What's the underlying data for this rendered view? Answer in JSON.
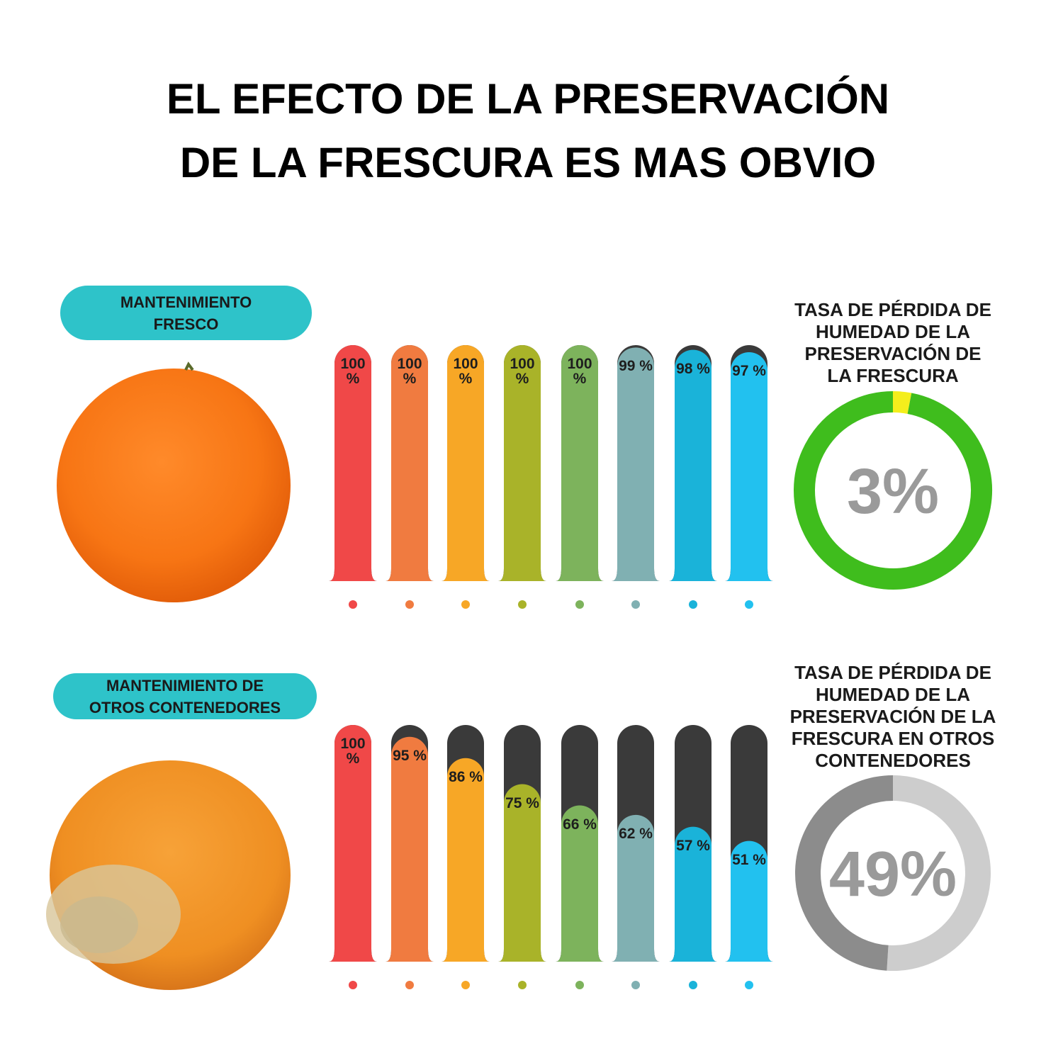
{
  "title": [
    "EL EFECTO DE LA PRESERVACIÓN",
    "DE LA FRESCURA ES MAS OBVIO"
  ],
  "chart_data": [
    {
      "type": "bar",
      "label": [
        "MANTENIMIENTO",
        "FRESCO"
      ],
      "values": [
        100,
        100,
        100,
        100,
        100,
        99,
        98,
        97
      ],
      "value_labels": [
        "100 %",
        "100 %",
        "100 %",
        "100 %",
        "100 %",
        "99 %",
        "98 %",
        "97 %"
      ],
      "colors": [
        "#f04848",
        "#f07b40",
        "#f7a726",
        "#a9b329",
        "#7db35c",
        "#80b0b2",
        "#1ab3d9",
        "#22c1ef"
      ],
      "track_color": "#3a3a3a",
      "ylim": [
        0,
        100
      ]
    },
    {
      "type": "donut",
      "title": [
        "TASA DE PÉRDIDA DE",
        "HUMEDAD DE LA",
        "PRESERVACIÓN DE",
        "LA FRESCURA"
      ],
      "values": [
        3,
        97
      ],
      "colors": [
        "#f4ee1c",
        "#3fbd1d"
      ],
      "center_label": "3%"
    },
    {
      "type": "bar",
      "label": [
        "MANTENIMIENTO DE",
        "OTROS CONTENEDORES"
      ],
      "values": [
        100,
        95,
        86,
        75,
        66,
        62,
        57,
        51
      ],
      "value_labels": [
        "100 %",
        "95 %",
        "86 %",
        "75 %",
        "66 %",
        "62 %",
        "57 %",
        "51 %"
      ],
      "colors": [
        "#f04848",
        "#f07b40",
        "#f7a726",
        "#a9b329",
        "#7db35c",
        "#80b0b2",
        "#1ab3d9",
        "#22c1ef"
      ],
      "track_color": "#3a3a3a",
      "ylim": [
        0,
        100
      ]
    },
    {
      "type": "donut",
      "title": [
        "TASA DE PÉRDIDA DE",
        "HUMEDAD DE LA",
        "PRESERVACIÓN DE LA",
        "FRESCURA EN OTROS",
        "CONTENEDORES"
      ],
      "values": [
        51,
        49
      ],
      "colors": [
        "#cdcdcd",
        "#8c8c8c"
      ],
      "center_label": "49%"
    }
  ]
}
